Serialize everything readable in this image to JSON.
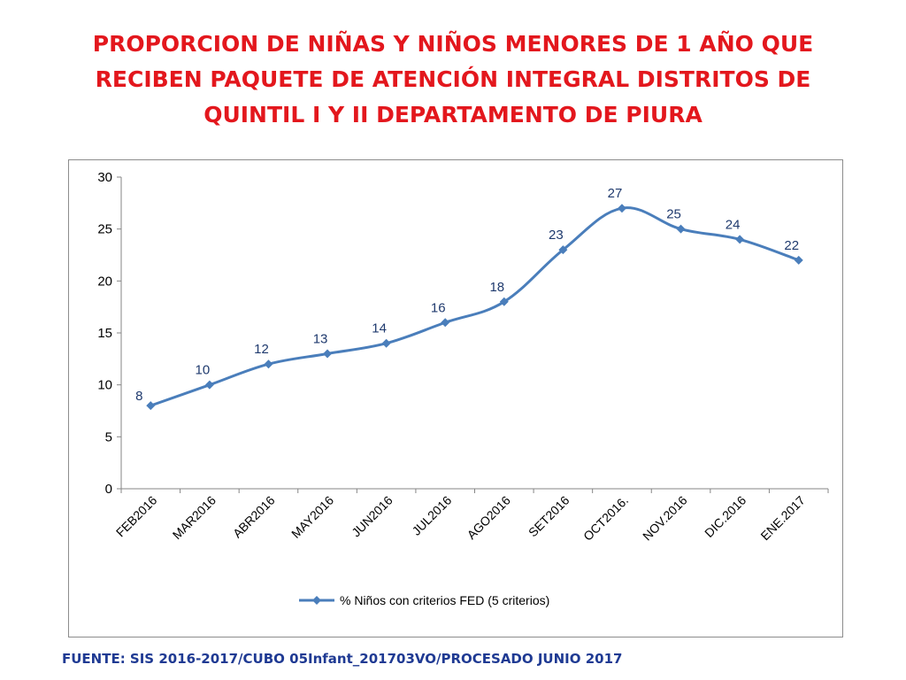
{
  "slide": {
    "title_lines": [
      "PROPORCION DE NIÑAS Y NIÑOS MENORES DE 1 AÑO QUE",
      "RECIBEN PAQUETE DE ATENCIÓN INTEGRAL  DISTRITOS DE",
      "QUINTIL I Y II DEPARTAMENTO DE PIURA"
    ],
    "source": "FUENTE: SIS 2016-2017/CUBO 05Infant_201703VO/PROCESADO JUNIO 2017",
    "title_color": "#e3171d",
    "source_color": "#1f3a93"
  },
  "chart_data": {
    "type": "line",
    "categories": [
      "FEB2016",
      "MAR2016",
      "ABR2016",
      "MAY2016",
      "JUN2016",
      "JUL2016",
      "AGO2016",
      "SET2016",
      "OCT2016.",
      "NOV.2016",
      "DIC.2016",
      "ENE.2017"
    ],
    "series": [
      {
        "name": "% Niños con criterios FED (5 criterios)",
        "values": [
          8,
          10,
          12,
          13,
          14,
          16,
          18,
          23,
          27,
          25,
          24,
          22
        ],
        "color": "#4a7ebb"
      }
    ],
    "yticks": [
      0,
      5,
      10,
      15,
      20,
      25,
      30
    ],
    "ylim": [
      0,
      30
    ],
    "grid": false,
    "legend": "bottom",
    "data_labels": true
  }
}
